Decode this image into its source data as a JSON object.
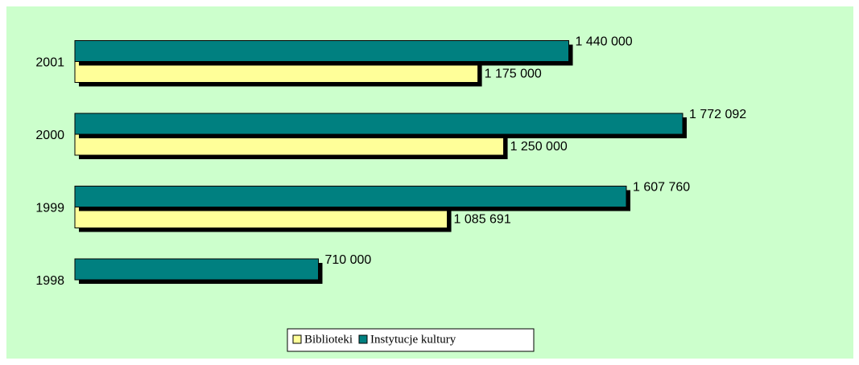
{
  "chart_data": {
    "type": "bar",
    "orientation": "horizontal",
    "categories": [
      "1998",
      "1999",
      "2000",
      "2001"
    ],
    "series": [
      {
        "name": "Biblioteki",
        "color": "#ffff99",
        "values": [
          null,
          1085691,
          1250000,
          1175000
        ],
        "value_labels": [
          null,
          "1 085 691",
          "1 250 000",
          "1 175 000"
        ]
      },
      {
        "name": "Instytucje kultury",
        "color": "#008080",
        "values": [
          710000,
          1607760,
          1772092,
          1440000
        ],
        "value_labels": [
          "710 000",
          "1 607 760",
          "1 772 092",
          "1 440 000"
        ]
      }
    ],
    "legend": "bottom"
  }
}
